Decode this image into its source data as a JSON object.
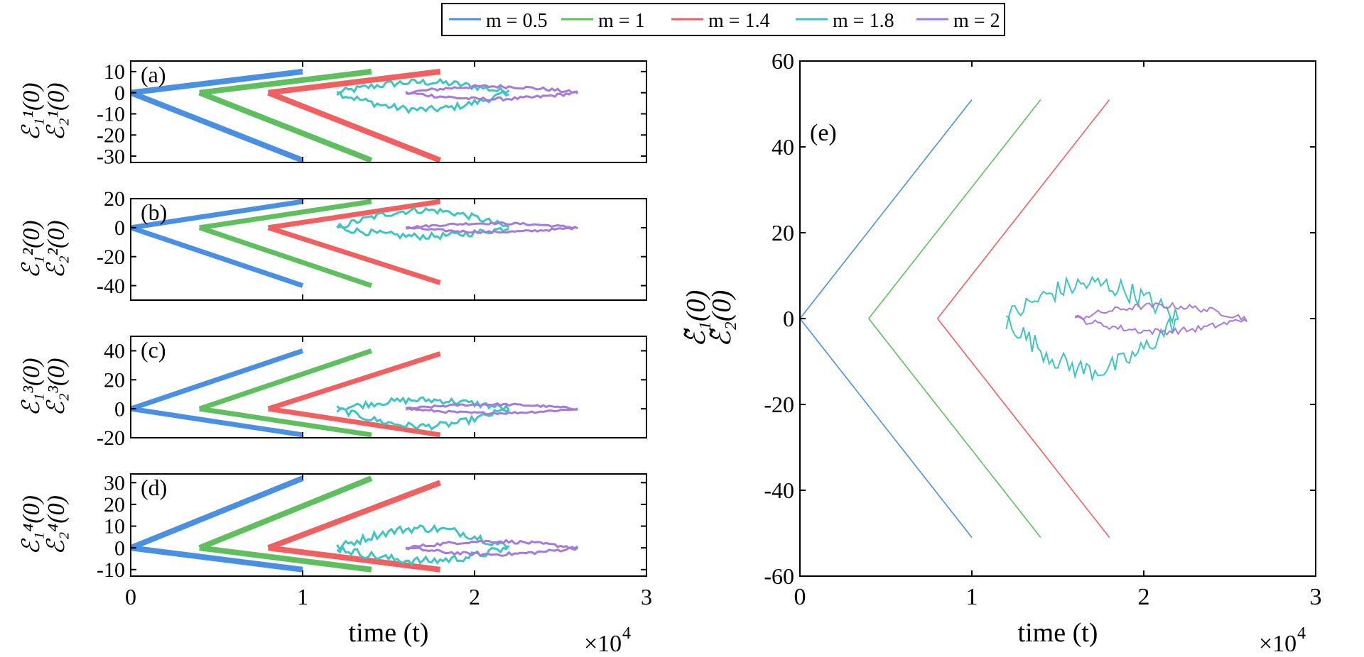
{
  "legend": {
    "entries": [
      {
        "label": "m = 0.5",
        "color": "#4a90e2"
      },
      {
        "label": "m = 1",
        "color": "#5fbf5f"
      },
      {
        "label": "m = 1.4",
        "color": "#f06060"
      },
      {
        "label": "m = 1.8",
        "color": "#3fc4c0"
      },
      {
        "label": "m = 2",
        "color": "#a67ad8"
      }
    ]
  },
  "x_multiplier": {
    "base": "×10",
    "exp": "4"
  },
  "chart_data": [
    {
      "type": "line",
      "panel": "(a)",
      "xlabel": "",
      "ylabel_1": "ℰ₁¹(0)",
      "ylabel_2": "ℰ₂¹(0)",
      "xlim": [
        0,
        3
      ],
      "ylim": [
        -33,
        15
      ],
      "yticks": [
        10,
        0,
        -10,
        -20,
        -30
      ],
      "xticks": [
        0,
        1,
        2,
        3
      ],
      "series": [
        {
          "name": "m = 0.5",
          "start": 0,
          "end": 1,
          "up": 10,
          "down": -32,
          "noisy": false
        },
        {
          "name": "m = 1",
          "start": 0.4,
          "end": 1.4,
          "up": 10,
          "down": -32,
          "noisy": false
        },
        {
          "name": "m = 1.4",
          "start": 0.8,
          "end": 1.8,
          "up": 10,
          "down": -32,
          "noisy": false
        },
        {
          "name": "m = 1.8",
          "start": 1.2,
          "end": 2.2,
          "up": 5,
          "down": -8,
          "noisy": true
        },
        {
          "name": "m = 2",
          "start": 1.6,
          "end": 2.6,
          "up": 3,
          "down": -3,
          "noisy": true
        }
      ]
    },
    {
      "type": "line",
      "panel": "(b)",
      "ylabel_1": "ℰ₁²(0)",
      "ylabel_2": "ℰ₂²(0)",
      "xlim": [
        0,
        3
      ],
      "ylim": [
        -50,
        20
      ],
      "yticks": [
        20,
        0,
        -20,
        -40
      ],
      "xticks": [
        0,
        1,
        2,
        3
      ],
      "series": [
        {
          "name": "m = 0.5",
          "start": 0,
          "end": 1,
          "up": 18,
          "down": -40,
          "noisy": false
        },
        {
          "name": "m = 1",
          "start": 0.4,
          "end": 1.4,
          "up": 18,
          "down": -40,
          "noisy": false
        },
        {
          "name": "m = 1.4",
          "start": 0.8,
          "end": 1.8,
          "up": 18,
          "down": -38,
          "noisy": false
        },
        {
          "name": "m = 1.8",
          "start": 1.2,
          "end": 2.2,
          "up": 12,
          "down": -6,
          "noisy": true
        },
        {
          "name": "m = 2",
          "start": 1.6,
          "end": 2.6,
          "up": 3,
          "down": -3,
          "noisy": true
        }
      ]
    },
    {
      "type": "line",
      "panel": "(c)",
      "ylabel_1": "ℰ₁³(0)",
      "ylabel_2": "ℰ₂³(0)",
      "xlim": [
        0,
        3
      ],
      "ylim": [
        -20,
        50
      ],
      "yticks": [
        40,
        20,
        0,
        -20
      ],
      "xticks": [
        0,
        1,
        2,
        3
      ],
      "series": [
        {
          "name": "m = 0.5",
          "start": 0,
          "end": 1,
          "up": 40,
          "down": -18,
          "noisy": false
        },
        {
          "name": "m = 1",
          "start": 0.4,
          "end": 1.4,
          "up": 40,
          "down": -18,
          "noisy": false
        },
        {
          "name": "m = 1.4",
          "start": 0.8,
          "end": 1.8,
          "up": 38,
          "down": -18,
          "noisy": false
        },
        {
          "name": "m = 1.8",
          "start": 1.2,
          "end": 2.2,
          "up": 6,
          "down": -12,
          "noisy": true
        },
        {
          "name": "m = 2",
          "start": 1.6,
          "end": 2.6,
          "up": 3,
          "down": -3,
          "noisy": true
        }
      ]
    },
    {
      "type": "line",
      "panel": "(d)",
      "ylabel_1": "ℰ₁⁴(0)",
      "ylabel_2": "ℰ₂⁴(0)",
      "xlabel": "time (t)",
      "xlim": [
        0,
        3
      ],
      "ylim": [
        -13,
        34
      ],
      "yticks": [
        30,
        20,
        10,
        0,
        -10
      ],
      "xticks": [
        0,
        1,
        2,
        3
      ],
      "series": [
        {
          "name": "m = 0.5",
          "start": 0,
          "end": 1,
          "up": 32,
          "down": -10,
          "noisy": false
        },
        {
          "name": "m = 1",
          "start": 0.4,
          "end": 1.4,
          "up": 32,
          "down": -10,
          "noisy": false
        },
        {
          "name": "m = 1.4",
          "start": 0.8,
          "end": 1.8,
          "up": 30,
          "down": -10,
          "noisy": false
        },
        {
          "name": "m = 1.8",
          "start": 1.2,
          "end": 2.2,
          "up": 9,
          "down": -6,
          "noisy": true
        },
        {
          "name": "m = 2",
          "start": 1.6,
          "end": 2.6,
          "up": 3,
          "down": -3,
          "noisy": true
        }
      ]
    },
    {
      "type": "line",
      "panel": "(e)",
      "ylabel_1": "ℰ̃₁(0)",
      "ylabel_2": "ℰ̃₂(0)",
      "xlabel": "time (t)",
      "xlim": [
        0,
        3
      ],
      "ylim": [
        -60,
        60
      ],
      "yticks": [
        60,
        40,
        20,
        0,
        -20,
        -40,
        -60
      ],
      "xticks": [
        0,
        1,
        2,
        3
      ],
      "series": [
        {
          "name": "m = 0.5",
          "start": 0,
          "end": 1,
          "up": 51,
          "down": -51,
          "noisy": false
        },
        {
          "name": "m = 1",
          "start": 0.4,
          "end": 1.4,
          "up": 51,
          "down": -51,
          "noisy": false
        },
        {
          "name": "m = 1.4",
          "start": 0.8,
          "end": 1.8,
          "up": 51,
          "down": -51,
          "noisy": false
        },
        {
          "name": "m = 1.8",
          "start": 1.2,
          "end": 2.2,
          "up": 8,
          "down": -12,
          "noisy": true
        },
        {
          "name": "m = 2",
          "start": 1.6,
          "end": 2.6,
          "up": 3,
          "down": -3,
          "noisy": true
        }
      ]
    }
  ]
}
